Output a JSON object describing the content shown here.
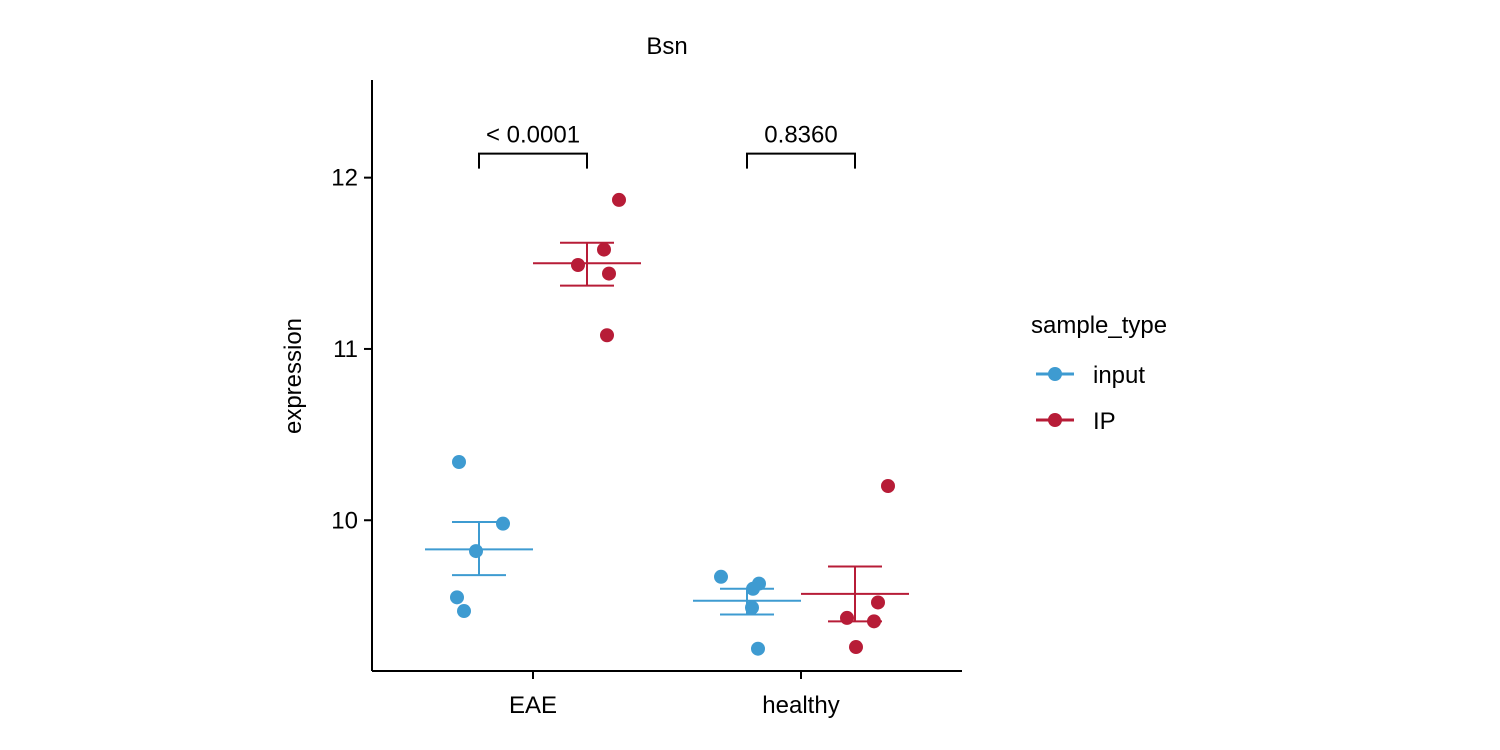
{
  "chart_data": {
    "type": "scatter",
    "title": "Bsn",
    "xlabel": "",
    "ylabel": "expression",
    "categories": [
      "EAE",
      "healthy"
    ],
    "ylim": [
      9.12,
      12.57
    ],
    "yticks": [
      10,
      11,
      12
    ],
    "grid": false,
    "legend": {
      "title": "sample_type",
      "position": "right",
      "entries": [
        {
          "label": "input",
          "color": "#3E9BD1"
        },
        {
          "label": "IP",
          "color": "#B71C37"
        }
      ]
    },
    "series": [
      {
        "name": "input",
        "color": "#3E9BD1",
        "points": [
          {
            "category": "EAE",
            "jitter": -0.2,
            "y": 10.34
          },
          {
            "category": "EAE",
            "jitter": 0.24,
            "y": 9.98
          },
          {
            "category": "EAE",
            "jitter": -0.03,
            "y": 9.82
          },
          {
            "category": "EAE",
            "jitter": -0.22,
            "y": 9.55
          },
          {
            "category": "EAE",
            "jitter": -0.15,
            "y": 9.47
          },
          {
            "category": "healthy",
            "jitter": -0.26,
            "y": 9.67
          },
          {
            "category": "healthy",
            "jitter": 0.12,
            "y": 9.63
          },
          {
            "category": "healthy",
            "jitter": 0.06,
            "y": 9.6
          },
          {
            "category": "healthy",
            "jitter": 0.05,
            "y": 9.49
          },
          {
            "category": "healthy",
            "jitter": 0.11,
            "y": 9.25
          }
        ],
        "summary": [
          {
            "category": "EAE",
            "mean": 9.83,
            "lower": 9.68,
            "upper": 9.99
          },
          {
            "category": "healthy",
            "mean": 9.53,
            "lower": 9.45,
            "upper": 9.6
          }
        ]
      },
      {
        "name": "IP",
        "color": "#B71C37",
        "points": [
          {
            "category": "EAE",
            "jitter": 0.32,
            "y": 11.87
          },
          {
            "category": "EAE",
            "jitter": 0.17,
            "y": 11.58
          },
          {
            "category": "EAE",
            "jitter": -0.09,
            "y": 11.49
          },
          {
            "category": "EAE",
            "jitter": 0.22,
            "y": 11.44
          },
          {
            "category": "EAE",
            "jitter": 0.2,
            "y": 11.08
          },
          {
            "category": "healthy",
            "jitter": 0.33,
            "y": 10.2
          },
          {
            "category": "healthy",
            "jitter": 0.23,
            "y": 9.52
          },
          {
            "category": "healthy",
            "jitter": -0.08,
            "y": 9.43
          },
          {
            "category": "healthy",
            "jitter": 0.19,
            "y": 9.41
          },
          {
            "category": "healthy",
            "jitter": 0.01,
            "y": 9.26
          }
        ],
        "summary": [
          {
            "category": "EAE",
            "mean": 11.5,
            "lower": 11.37,
            "upper": 11.62
          },
          {
            "category": "healthy",
            "mean": 9.57,
            "lower": 9.41,
            "upper": 9.73
          }
        ]
      }
    ],
    "annotations": [
      {
        "category": "EAE",
        "text": "< 0.0001",
        "y": 12.14
      },
      {
        "category": "healthy",
        "text": "0.8360",
        "y": 12.14
      }
    ]
  }
}
